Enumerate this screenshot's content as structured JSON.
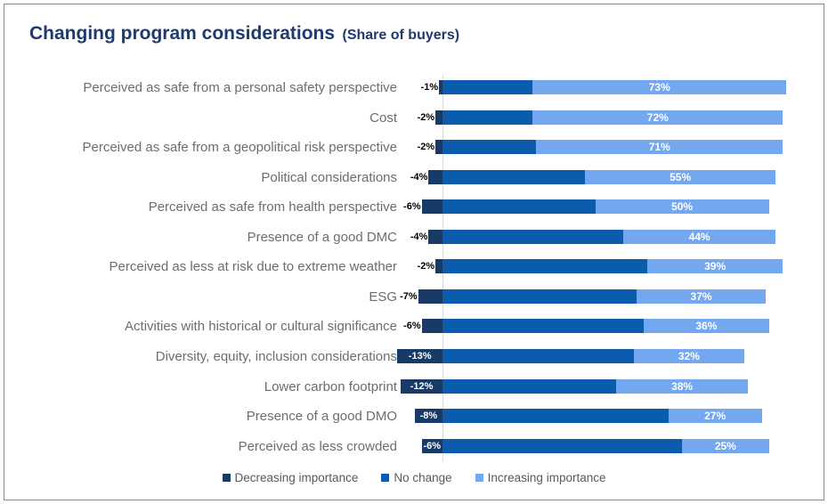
{
  "title": {
    "main": "Changing program considerations",
    "sub": "(Share of buyers)"
  },
  "colors": {
    "title_text": "#1F3A6E",
    "category_text": "#6D6D6D",
    "decreasing": "#183A66",
    "no_change": "#0B5CAC",
    "increasing": "#73A7EF",
    "zero_axis_line": "#D9D9D9",
    "legend_text": "#595959",
    "label_outside": "#000000",
    "label_inside": "#FFFFFF",
    "frame_border": "#8A8A8A"
  },
  "legend": {
    "items": [
      {
        "label": "Decreasing importance",
        "series": "decreasing"
      },
      {
        "label": "No change",
        "series": "no_change"
      },
      {
        "label": "Increasing importance",
        "series": "increasing"
      }
    ]
  },
  "chart_data": {
    "type": "bar",
    "orientation": "horizontal",
    "stacked": true,
    "title": "Changing program considerations (Share of buyers)",
    "xlabel": "",
    "ylabel": "",
    "xlim": [
      -15,
      100
    ],
    "grid": false,
    "x_axis_ticks_visible": false,
    "zero_baseline_visible": true,
    "legend_position": "bottom-center",
    "units": "percent share of buyers",
    "categories": [
      "Perceived as safe from a personal safety perspective",
      "Cost",
      "Perceived as safe from a geopolitical risk perspective",
      "Political considerations",
      "Perceived as safe from health perspective",
      "Presence of a good DMC",
      "Perceived as less at risk due to extreme weather",
      "ESG",
      "Activities with historical or cultural significance",
      "Diversity, equity, inclusion considerations",
      "Lower carbon footprint",
      "Presence of a good DMO",
      "Perceived as less crowded"
    ],
    "series": [
      {
        "name": "Decreasing importance",
        "values": [
          -1,
          -2,
          -2,
          -4,
          -6,
          -4,
          -2,
          -7,
          -6,
          -13,
          -12,
          -8,
          -6
        ],
        "labels": [
          "-1%",
          "-2%",
          "-2%",
          "-4%",
          "-6%",
          "-4%",
          "-2%",
          "-7%",
          "-6%",
          "-13%",
          "-12%",
          "-8%",
          "-6%"
        ],
        "label_placement": [
          "outside",
          "outside",
          "outside",
          "outside",
          "outside",
          "outside",
          "outside",
          "outside",
          "outside",
          "inside",
          "inside",
          "inside",
          "inside"
        ]
      },
      {
        "name": "No change",
        "values": [
          26,
          26,
          27,
          41,
          44,
          52,
          59,
          56,
          58,
          55,
          50,
          65,
          69
        ],
        "labels": [
          "",
          "",
          "",
          "",
          "",
          "",
          "",
          "",
          "",
          "",
          "",
          "",
          ""
        ],
        "label_placement": []
      },
      {
        "name": "Increasing importance",
        "values": [
          73,
          72,
          71,
          55,
          50,
          44,
          39,
          37,
          36,
          32,
          38,
          27,
          25
        ],
        "labels": [
          "73%",
          "72%",
          "71%",
          "55%",
          "50%",
          "44%",
          "39%",
          "37%",
          "36%",
          "32%",
          "38%",
          "27%",
          "25%"
        ],
        "label_placement": [
          "inside",
          "inside",
          "inside",
          "inside",
          "inside",
          "inside",
          "inside",
          "inside",
          "inside",
          "inside",
          "inside",
          "inside",
          "inside"
        ]
      }
    ]
  }
}
